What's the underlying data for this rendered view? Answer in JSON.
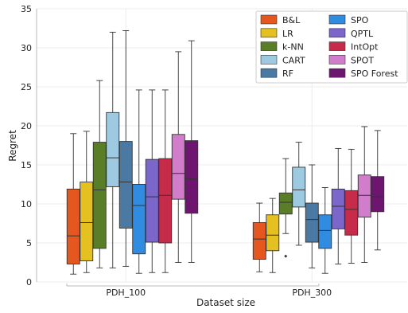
{
  "chart_data": {
    "type": "box",
    "xlabel": "Dataset size",
    "ylabel": "Regret",
    "ylim": [
      0,
      35
    ],
    "yticks": [
      0,
      5,
      10,
      15,
      20,
      25,
      30,
      35
    ],
    "grid": true,
    "legend_position": "top-right",
    "categories": [
      "PDH_100",
      "PDH_300"
    ],
    "series": [
      {
        "name": "B&L",
        "color": "#e5571e",
        "boxes": [
          {
            "min": 1.0,
            "q1": 2.3,
            "median": 5.9,
            "q3": 11.9,
            "max": 19.0,
            "outliers": []
          },
          {
            "min": 1.3,
            "q1": 2.9,
            "median": 5.5,
            "q3": 7.6,
            "max": 10.1,
            "outliers": []
          }
        ]
      },
      {
        "name": "LR",
        "color": "#e4c020",
        "boxes": [
          {
            "min": 1.2,
            "q1": 2.7,
            "median": 7.6,
            "q3": 12.8,
            "max": 19.3,
            "outliers": []
          },
          {
            "min": 1.2,
            "q1": 4.0,
            "median": 6.0,
            "q3": 8.6,
            "max": 10.7,
            "outliers": []
          }
        ]
      },
      {
        "name": "k-NN",
        "color": "#5a7d27",
        "boxes": [
          {
            "min": 1.8,
            "q1": 4.3,
            "median": 11.8,
            "q3": 17.9,
            "max": 25.8,
            "outliers": []
          },
          {
            "min": 6.2,
            "q1": 8.7,
            "median": 10.2,
            "q3": 11.4,
            "max": 15.8,
            "outliers": [
              3.3
            ]
          }
        ]
      },
      {
        "name": "CART",
        "color": "#9ecae1",
        "boxes": [
          {
            "min": 1.8,
            "q1": 12.2,
            "median": 15.9,
            "q3": 21.7,
            "max": 32.0,
            "outliers": []
          },
          {
            "min": 4.7,
            "q1": 9.6,
            "median": 11.8,
            "q3": 14.7,
            "max": 17.9,
            "outliers": []
          }
        ]
      },
      {
        "name": "RF",
        "color": "#4a7aa3",
        "boxes": [
          {
            "min": 2.0,
            "q1": 6.9,
            "median": 12.8,
            "q3": 18.0,
            "max": 32.2,
            "outliers": []
          },
          {
            "min": 1.8,
            "q1": 5.1,
            "median": 8.0,
            "q3": 10.1,
            "max": 15.0,
            "outliers": []
          }
        ]
      },
      {
        "name": "SPO",
        "color": "#2f8ce0",
        "boxes": [
          {
            "min": 1.1,
            "q1": 3.6,
            "median": 9.8,
            "q3": 12.5,
            "max": 24.6,
            "outliers": []
          },
          {
            "min": 1.1,
            "q1": 4.3,
            "median": 6.6,
            "q3": 8.6,
            "max": 12.1,
            "outliers": []
          }
        ]
      },
      {
        "name": "QPTL",
        "color": "#7b66c9",
        "boxes": [
          {
            "min": 1.2,
            "q1": 5.1,
            "median": 10.9,
            "q3": 15.7,
            "max": 24.6,
            "outliers": []
          },
          {
            "min": 2.3,
            "q1": 6.8,
            "median": 9.7,
            "q3": 11.9,
            "max": 17.1,
            "outliers": []
          }
        ]
      },
      {
        "name": "IntOpt",
        "color": "#c62b4a",
        "boxes": [
          {
            "min": 1.2,
            "q1": 5.0,
            "median": 11.1,
            "q3": 15.8,
            "max": 24.6,
            "outliers": []
          },
          {
            "min": 2.4,
            "q1": 6.0,
            "median": 9.3,
            "q3": 11.7,
            "max": 17.0,
            "outliers": []
          }
        ]
      },
      {
        "name": "SPOT",
        "color": "#d27ccc",
        "boxes": [
          {
            "min": 2.5,
            "q1": 10.6,
            "median": 13.9,
            "q3": 18.9,
            "max": 29.5,
            "outliers": []
          },
          {
            "min": 2.5,
            "q1": 8.3,
            "median": 11.1,
            "q3": 13.7,
            "max": 19.9,
            "outliers": []
          }
        ]
      },
      {
        "name": "SPO Forest",
        "color": "#6e1570",
        "boxes": [
          {
            "min": 2.5,
            "q1": 8.8,
            "median": 13.2,
            "q3": 18.1,
            "max": 30.9,
            "outliers": []
          },
          {
            "min": 4.1,
            "q1": 9.0,
            "median": 10.9,
            "q3": 13.5,
            "max": 19.4,
            "outliers": []
          }
        ]
      }
    ]
  }
}
